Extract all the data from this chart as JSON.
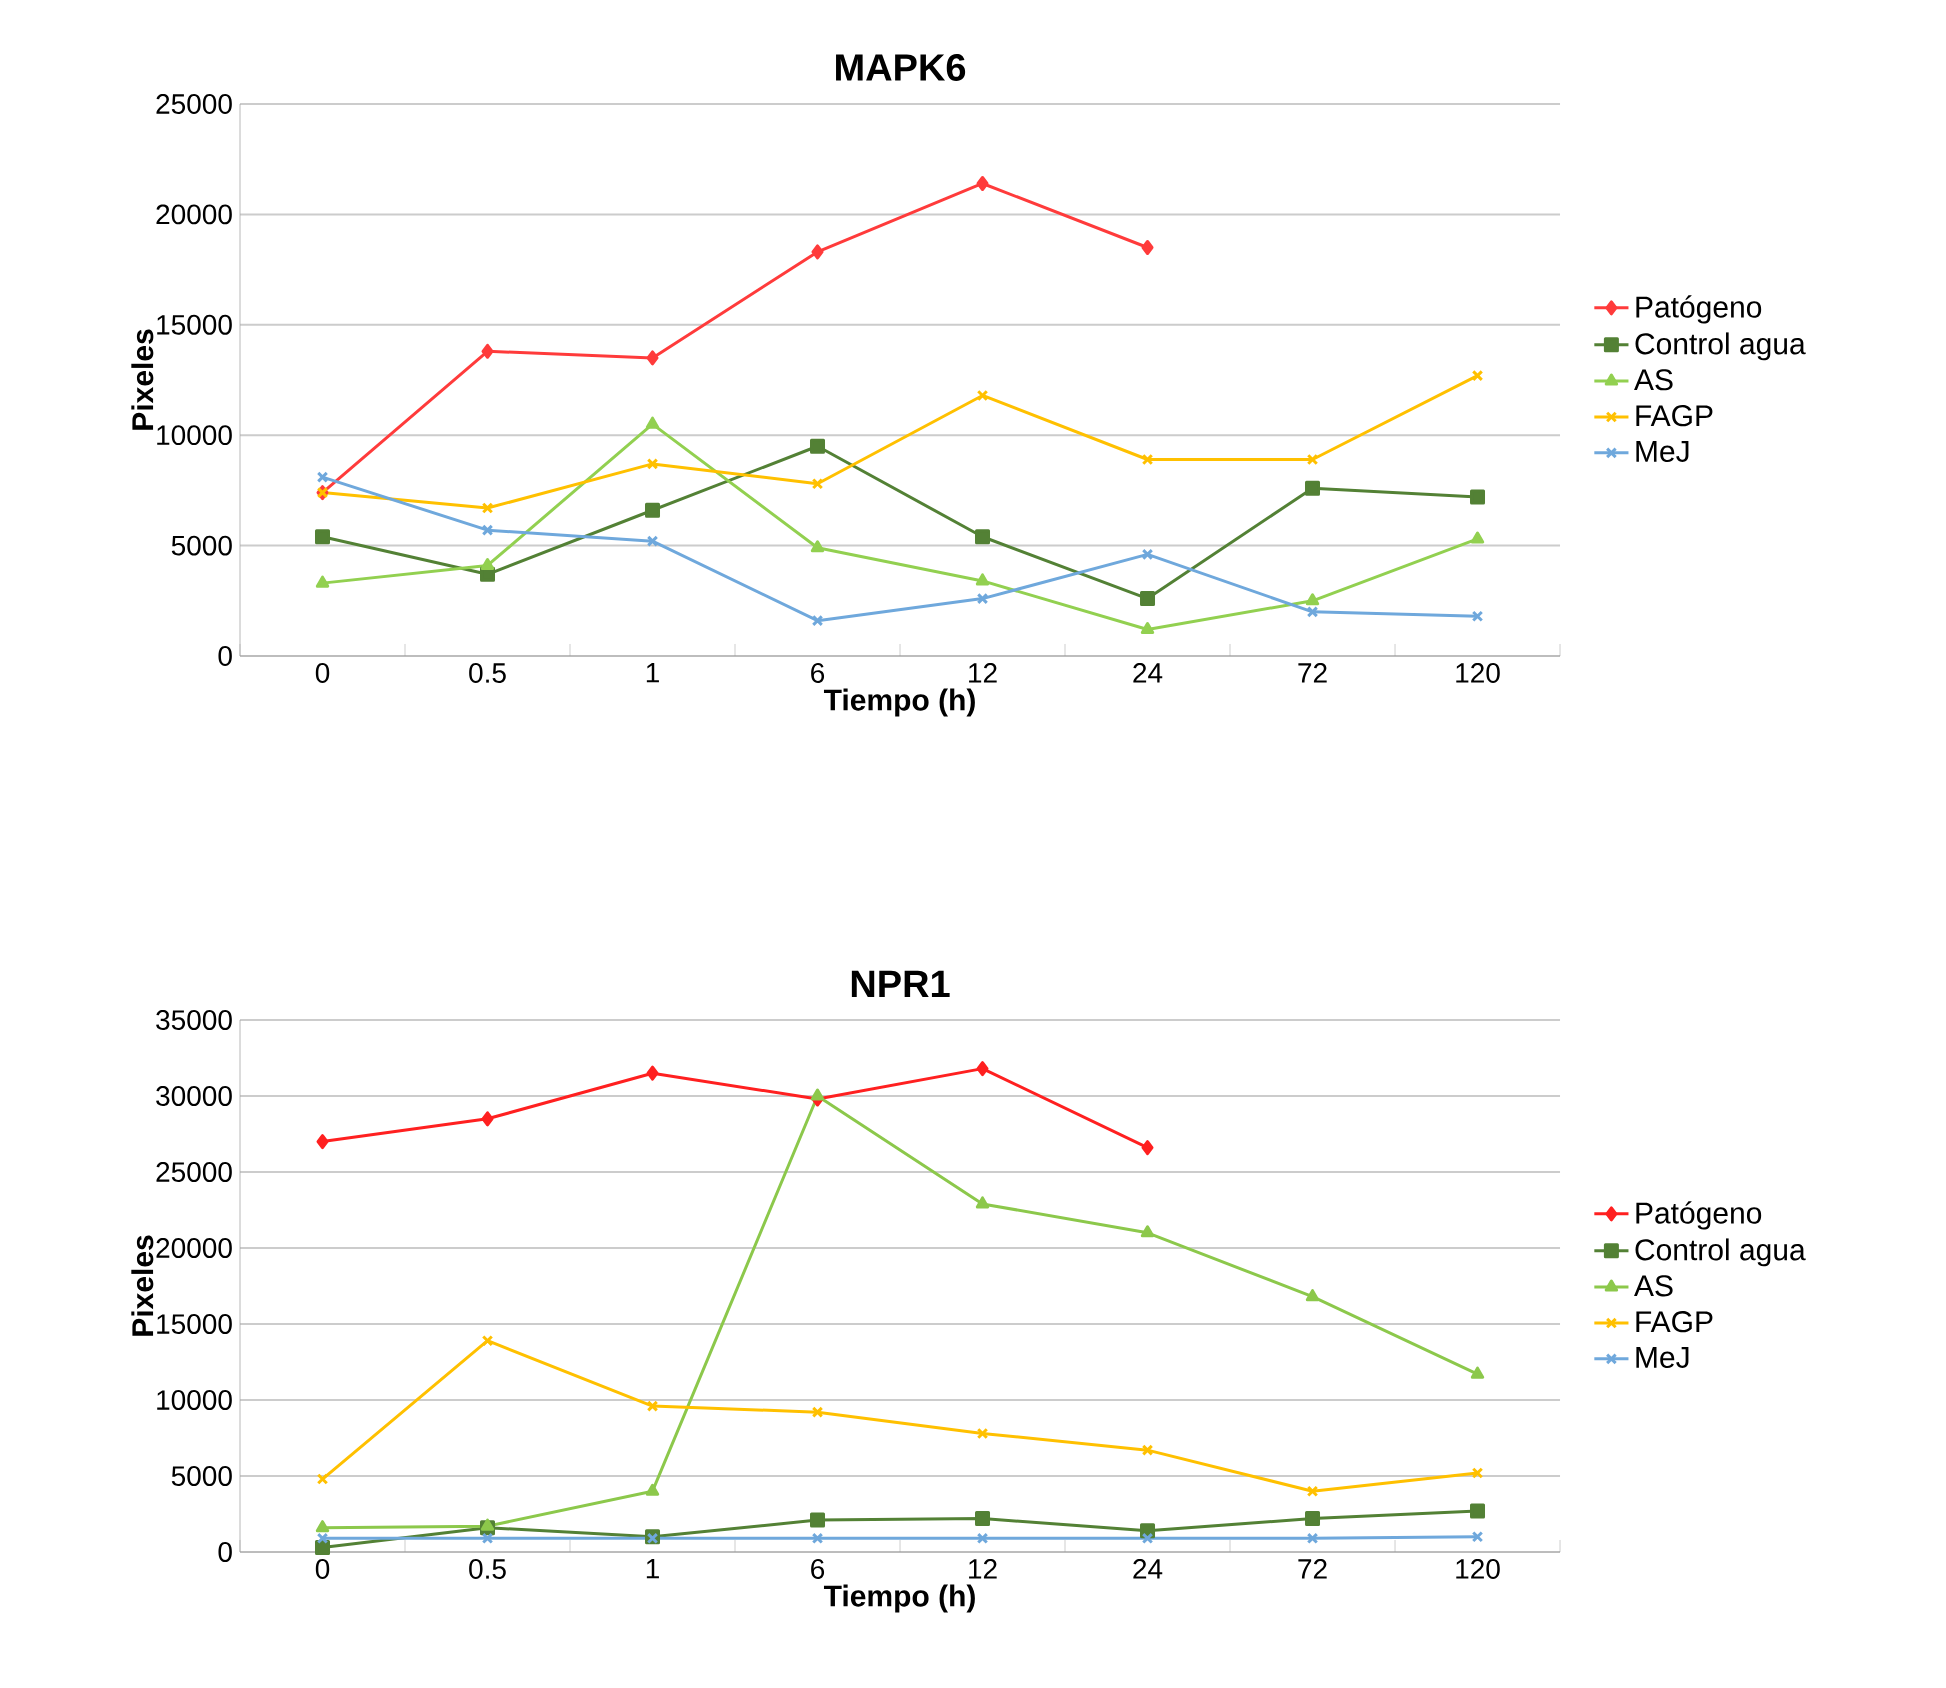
{
  "chart_data": [
    {
      "type": "line",
      "title": "MAPK6",
      "xlabel": "Tiempo (h)",
      "ylabel": "Pixeles",
      "categories": [
        "0",
        "0.5",
        "1",
        "6",
        "12",
        "24",
        "72",
        "120"
      ],
      "ylim": [
        0,
        25000
      ],
      "yticks": [
        0,
        5000,
        10000,
        15000,
        20000,
        25000
      ],
      "grid": "y",
      "legend": "right",
      "series": [
        {
          "name": "Patógeno",
          "color": "#ff3b3b",
          "marker": "diamond",
          "values": [
            7400,
            13800,
            13500,
            18300,
            21400,
            18500,
            null,
            null
          ]
        },
        {
          "name": "Control agua",
          "color": "#538135",
          "marker": "square",
          "values": [
            5400,
            3700,
            6600,
            9500,
            5400,
            2600,
            7600,
            7200
          ]
        },
        {
          "name": "AS",
          "color": "#92d050",
          "marker": "triangle",
          "values": [
            3300,
            4100,
            10500,
            4900,
            3400,
            1200,
            2500,
            5300
          ]
        },
        {
          "name": "FAGP",
          "color": "#ffc000",
          "marker": "cross",
          "values": [
            7400,
            6700,
            8700,
            7800,
            11800,
            8900,
            8900,
            12700
          ]
        },
        {
          "name": "MeJ",
          "color": "#6fa8dc",
          "marker": "cross",
          "values": [
            8100,
            5700,
            5200,
            1600,
            2600,
            4600,
            2000,
            1800
          ]
        }
      ]
    },
    {
      "type": "line",
      "title": "NPR1",
      "xlabel": "Tiempo (h)",
      "ylabel": "Pixeles",
      "categories": [
        "0",
        "0.5",
        "1",
        "6",
        "12",
        "24",
        "72",
        "120"
      ],
      "ylim": [
        0,
        35000
      ],
      "yticks": [
        0,
        5000,
        10000,
        15000,
        20000,
        25000,
        30000,
        35000
      ],
      "grid": "y",
      "legend": "right",
      "series": [
        {
          "name": "Patógeno",
          "color": "#ff2020",
          "marker": "diamond",
          "values": [
            27000,
            28500,
            31500,
            29800,
            31800,
            26600,
            null,
            null
          ]
        },
        {
          "name": "Control agua",
          "color": "#538135",
          "marker": "square",
          "values": [
            300,
            1600,
            1000,
            2100,
            2200,
            1400,
            2200,
            2700
          ]
        },
        {
          "name": "AS",
          "color": "#8cc84b",
          "marker": "triangle",
          "values": [
            1600,
            1700,
            4000,
            30000,
            22900,
            21000,
            16800,
            11700
          ]
        },
        {
          "name": "FAGP",
          "color": "#ffc000",
          "marker": "cross",
          "values": [
            4800,
            13900,
            9600,
            9200,
            7800,
            6700,
            4000,
            5200
          ]
        },
        {
          "name": "MeJ",
          "color": "#6fa8dc",
          "marker": "cross",
          "values": [
            900,
            900,
            900,
            900,
            900,
            900,
            900,
            1000
          ]
        }
      ]
    }
  ]
}
